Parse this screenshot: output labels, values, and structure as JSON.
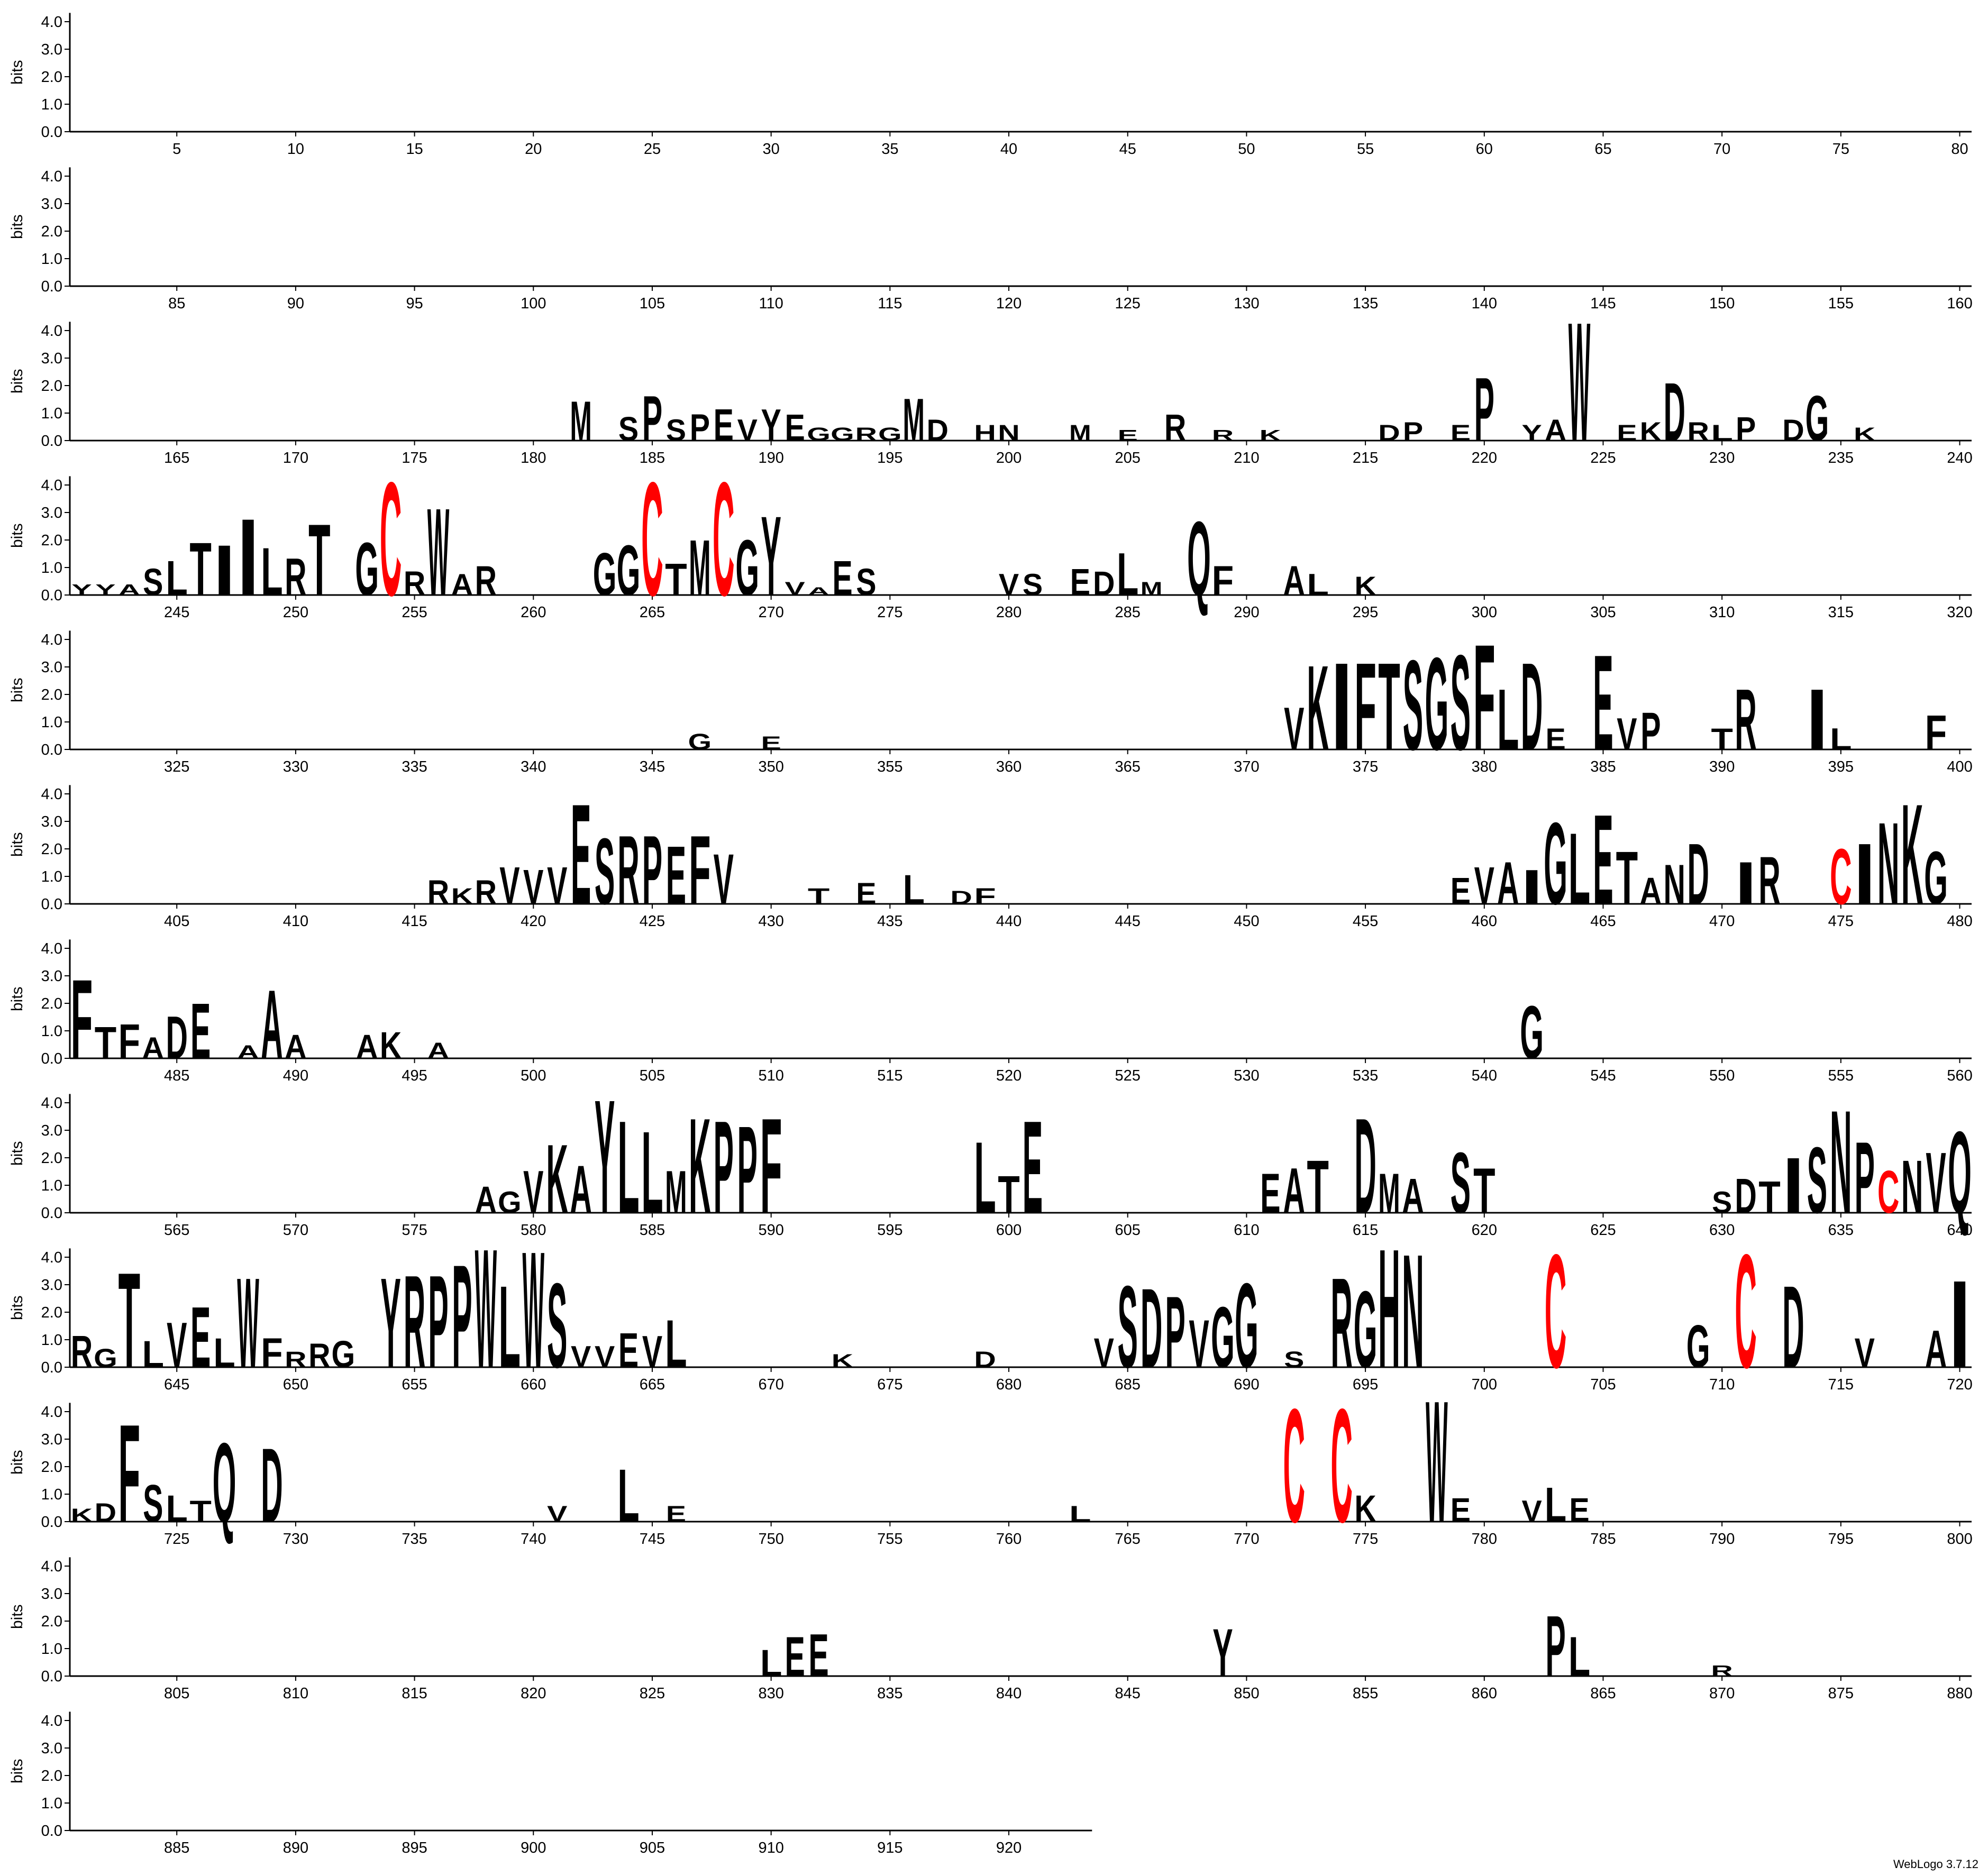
{
  "chart_data": {
    "type": "logo",
    "ylabel": "bits",
    "footer": "WebLogo 3.7.12",
    "row_size": 80,
    "xlim": [
      1,
      923
    ],
    "ylim": [
      0,
      4.32
    ],
    "yticks": [
      {
        "value": 0,
        "label": "0.0"
      },
      {
        "value": 1,
        "label": "1.0"
      },
      {
        "value": 2,
        "label": "2.0"
      },
      {
        "value": 3,
        "label": "3.0"
      },
      {
        "value": 4,
        "label": "4.0"
      }
    ],
    "xticks": [
      5,
      10,
      15,
      20,
      25,
      30,
      35,
      40,
      45,
      50,
      55,
      60,
      65,
      70,
      75,
      80,
      85,
      90,
      95,
      100,
      105,
      110,
      115,
      120,
      125,
      130,
      135,
      140,
      145,
      150,
      155,
      160,
      165,
      170,
      175,
      180,
      185,
      190,
      195,
      200,
      205,
      210,
      215,
      220,
      225,
      230,
      235,
      240,
      245,
      250,
      255,
      260,
      265,
      270,
      275,
      280,
      285,
      290,
      295,
      300,
      305,
      310,
      315,
      320,
      325,
      330,
      335,
      340,
      345,
      350,
      355,
      360,
      365,
      370,
      375,
      380,
      385,
      390,
      395,
      400,
      405,
      410,
      415,
      420,
      425,
      430,
      435,
      440,
      445,
      450,
      455,
      460,
      465,
      470,
      475,
      480,
      485,
      490,
      495,
      500,
      505,
      510,
      515,
      520,
      525,
      530,
      535,
      540,
      545,
      550,
      555,
      560,
      565,
      570,
      575,
      580,
      585,
      590,
      595,
      600,
      605,
      610,
      615,
      620,
      625,
      630,
      635,
      640,
      645,
      650,
      655,
      660,
      665,
      670,
      675,
      680,
      685,
      690,
      695,
      700,
      705,
      710,
      715,
      720,
      725,
      730,
      735,
      740,
      745,
      750,
      755,
      760,
      765,
      770,
      775,
      780,
      785,
      790,
      795,
      800,
      805,
      810,
      815,
      820,
      825,
      830,
      835,
      840,
      845,
      850,
      855,
      860,
      865,
      870,
      875,
      880,
      885,
      890,
      895,
      900,
      905,
      910,
      915,
      920
    ],
    "letter_colors": {
      "C": "#ff0000",
      "other": "#000000"
    },
    "positions": [
      182,
      184,
      185,
      186,
      187,
      188,
      189,
      190,
      191,
      192,
      193,
      194,
      195,
      196,
      197,
      199,
      200,
      203,
      205,
      207,
      209,
      211,
      216,
      217,
      219,
      220,
      222,
      223,
      224,
      226,
      227,
      228,
      229,
      230,
      231,
      233,
      234,
      236,
      241,
      242,
      243,
      244,
      245,
      246,
      247,
      248,
      249,
      250,
      251,
      253,
      254,
      255,
      256,
      257,
      258,
      263,
      264,
      265,
      266,
      267,
      268,
      269,
      270,
      271,
      272,
      273,
      274,
      280,
      281,
      283,
      284,
      285,
      286,
      288,
      289,
      292,
      293,
      295,
      347,
      350,
      372,
      373,
      374,
      375,
      376,
      377,
      378,
      379,
      380,
      381,
      382,
      383,
      385,
      386,
      387,
      390,
      391,
      394,
      395,
      399,
      416,
      417,
      418,
      419,
      420,
      421,
      422,
      423,
      424,
      425,
      426,
      427,
      428,
      432,
      434,
      436,
      438,
      439,
      459,
      460,
      461,
      462,
      463,
      464,
      465,
      466,
      467,
      468,
      469,
      471,
      472,
      475,
      476,
      477,
      478,
      479,
      481,
      482,
      483,
      484,
      485,
      486,
      488,
      489,
      490,
      493,
      494,
      496,
      542,
      578,
      579,
      580,
      581,
      582,
      583,
      584,
      585,
      586,
      587,
      588,
      589,
      590,
      599,
      600,
      601,
      611,
      612,
      613,
      615,
      616,
      617,
      619,
      620,
      630,
      631,
      632,
      633,
      634,
      635,
      636,
      637,
      638,
      639,
      640,
      641,
      642,
      643,
      644,
      645,
      646,
      647,
      648,
      649,
      650,
      651,
      652,
      654,
      655,
      656,
      657,
      658,
      659,
      660,
      661,
      662,
      663,
      664,
      665,
      666,
      673,
      679,
      684,
      685,
      686,
      687,
      688,
      689,
      690,
      692,
      694,
      695,
      696,
      697,
      703,
      709,
      711,
      713,
      716,
      719,
      720,
      721,
      722,
      723,
      724,
      725,
      726,
      727,
      729,
      741,
      744,
      746,
      763,
      772,
      774,
      775,
      778,
      779,
      782,
      783,
      784,
      830,
      831,
      832,
      849,
      863,
      864,
      870
    ],
    "letters": [
      "M",
      "S",
      "P",
      "S",
      "P",
      "E",
      "V",
      "Y",
      "E",
      "G",
      "G",
      "R",
      "G",
      "M",
      "D",
      "H",
      "N",
      "M",
      "E",
      "R",
      "R",
      "K",
      "D",
      "P",
      "E",
      "P",
      "Y",
      "A",
      "W",
      "E",
      "K",
      "D",
      "R",
      "L",
      "P",
      "D",
      "G",
      "K",
      "Y",
      "Y",
      "A",
      "S",
      "L",
      "T",
      "I",
      "I",
      "L",
      "R",
      "T",
      "G",
      "C",
      "R",
      "W",
      "A",
      "R",
      "G",
      "G",
      "C",
      "T",
      "M",
      "C",
      "G",
      "Y",
      "V",
      "A",
      "E",
      "S",
      "V",
      "S",
      "E",
      "D",
      "L",
      "M",
      "Q",
      "F",
      "A",
      "L",
      "K",
      "G",
      "E",
      "V",
      "K",
      "I",
      "F",
      "T",
      "S",
      "G",
      "S",
      "F",
      "L",
      "D",
      "E",
      "E",
      "V",
      "P",
      "T",
      "R",
      "I",
      "L",
      "F",
      "R",
      "K",
      "R",
      "V",
      "V",
      "V",
      "E",
      "S",
      "R",
      "P",
      "E",
      "F",
      "V",
      "T",
      "E",
      "L",
      "D",
      "F",
      "E",
      "V",
      "A",
      "I",
      "G",
      "L",
      "E",
      "T",
      "A",
      "N",
      "D",
      "I",
      "R",
      "C",
      "I",
      "N",
      "K",
      "G",
      "F",
      "T",
      "F",
      "A",
      "D",
      "E",
      "A",
      "A",
      "A",
      "A",
      "K",
      "A",
      "G",
      "A",
      "G",
      "V",
      "K",
      "A",
      "Y",
      "L",
      "L",
      "M",
      "K",
      "P",
      "P",
      "F",
      "L",
      "T",
      "E",
      "E",
      "A",
      "T",
      "D",
      "M",
      "A",
      "S",
      "T",
      "S",
      "D",
      "T",
      "I",
      "S",
      "N",
      "P",
      "C",
      "N",
      "V",
      "Q",
      "R",
      "G",
      "T",
      "L",
      "V",
      "E",
      "L",
      "W",
      "F",
      "R",
      "R",
      "G",
      "Y",
      "R",
      "P",
      "P",
      "W",
      "L",
      "W",
      "S",
      "V",
      "V",
      "E",
      "V",
      "L",
      "K",
      "D",
      "V",
      "S",
      "D",
      "P",
      "V",
      "G",
      "G",
      "S",
      "R",
      "G",
      "H",
      "N",
      "C",
      "G",
      "C",
      "D",
      "V",
      "A",
      "I",
      "K",
      "D",
      "F",
      "S",
      "L",
      "T",
      "Q",
      "D",
      "V",
      "L",
      "E",
      "L",
      "C",
      "C",
      "K",
      "W",
      "E",
      "V",
      "L",
      "E",
      "L",
      "E",
      "E",
      "Y",
      "P",
      "L",
      "R"
    ],
    "values": [
      1.5,
      0.9,
      1.7,
      0.8,
      1.0,
      1.2,
      0.8,
      1.2,
      1.0,
      0.5,
      0.5,
      0.5,
      0.5,
      1.6,
      0.8,
      0.6,
      0.6,
      0.6,
      0.4,
      1.0,
      0.4,
      0.4,
      0.6,
      0.7,
      0.6,
      2.4,
      0.6,
      0.8,
      4.5,
      0.6,
      0.7,
      2.2,
      0.7,
      0.6,
      0.9,
      0.8,
      1.7,
      0.5,
      0.4,
      0.4,
      0.4,
      1.0,
      1.3,
      2.0,
      1.9,
      2.9,
      1.8,
      1.4,
      2.7,
      2.0,
      4.3,
      0.9,
      3.3,
      0.8,
      1.1,
      1.6,
      1.9,
      4.3,
      1.2,
      2.1,
      4.3,
      2.1,
      3.0,
      0.5,
      0.3,
      1.3,
      1.0,
      0.8,
      0.8,
      1.0,
      0.9,
      1.6,
      0.5,
      2.8,
      1.1,
      1.1,
      0.8,
      0.7,
      0.6,
      0.5,
      1.6,
      3.2,
      3.3,
      3.3,
      3.3,
      3.4,
      3.5,
      3.6,
      4.0,
      2.3,
      3.3,
      0.8,
      3.6,
      1.2,
      1.4,
      0.8,
      2.3,
      2.3,
      0.8,
      1.3,
      0.9,
      0.6,
      0.9,
      1.4,
      1.3,
      1.4,
      3.8,
      2.5,
      2.6,
      2.6,
      2.2,
      2.6,
      1.9,
      0.6,
      0.8,
      1.1,
      0.5,
      0.6,
      1.0,
      1.4,
      1.6,
      1.3,
      3.1,
      2.7,
      3.4,
      2.0,
      1.0,
      1.5,
      2.3,
      1.6,
      1.8,
      2.1,
      2.3,
      3.1,
      3.8,
      2.0,
      3.0,
      1.2,
      1.3,
      0.8,
      1.6,
      2.1,
      0.5,
      2.6,
      0.9,
      0.9,
      1.0,
      0.6,
      2.0,
      1.0,
      0.8,
      1.6,
      2.6,
      1.8,
      4.3,
      3.5,
      3.1,
      1.6,
      3.6,
      3.5,
      3.3,
      3.6,
      2.7,
      1.4,
      3.5,
      1.5,
      1.7,
      2.0,
      3.6,
      1.5,
      1.3,
      2.3,
      1.7,
      0.8,
      1.3,
      1.2,
      2.1,
      2.5,
      3.9,
      2.7,
      1.6,
      2.0,
      2.3,
      3.1,
      1.2,
      0.7,
      3.6,
      1.0,
      1.7,
      2.3,
      1.1,
      3.4,
      1.1,
      0.6,
      0.9,
      1.0,
      3.4,
      3.5,
      3.5,
      3.9,
      4.5,
      3.1,
      4.4,
      3.2,
      0.8,
      0.8,
      1.3,
      1.2,
      1.8,
      0.5,
      0.6,
      1.1,
      3.1,
      3.0,
      2.7,
      1.8,
      2.3,
      3.2,
      0.6,
      3.4,
      2.9,
      4.5,
      4.3,
      4.3,
      1.6,
      4.3,
      3.1,
      1.1,
      1.4,
      3.3,
      0.5,
      0.7,
      3.7,
      1.4,
      1.0,
      0.8,
      3.0,
      2.8,
      0.6,
      2.0,
      0.6,
      0.6,
      4.3,
      4.3,
      1.0,
      4.6,
      0.9,
      0.8,
      1.3,
      0.9,
      1.0,
      1.5,
      1.6,
      1.8,
      2.3,
      1.5,
      0.4
    ]
  }
}
